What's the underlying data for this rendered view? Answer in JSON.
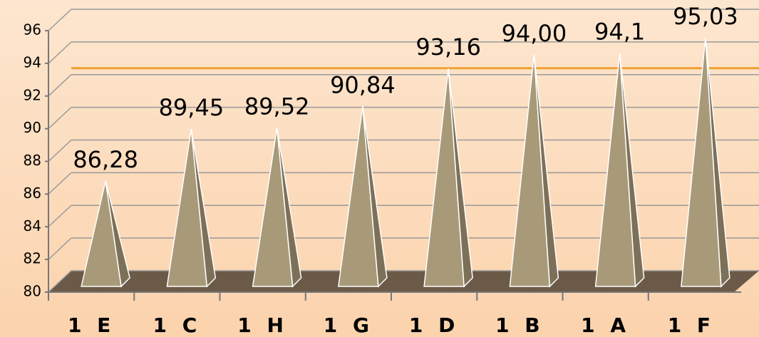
{
  "chart_data": {
    "type": "bar",
    "categories": [
      "1 E",
      "1 C",
      "1 H",
      "1 G",
      "1 D",
      "1 B",
      "1 A",
      "1 F"
    ],
    "values": [
      86.28,
      89.45,
      89.52,
      90.84,
      93.16,
      94.0,
      94.1,
      95.03
    ],
    "value_labels": [
      "86,28",
      "89,45",
      "89,52",
      "90,84",
      "93,16",
      "94,00",
      "94,1",
      "95,03"
    ],
    "color": "#a89a78",
    "ylim": [
      80,
      96
    ],
    "yticks": [
      80,
      82,
      84,
      86,
      88,
      90,
      92,
      94,
      96
    ],
    "grid": true,
    "reference_line": {
      "value": 93.7,
      "color": "#f0a030"
    }
  }
}
